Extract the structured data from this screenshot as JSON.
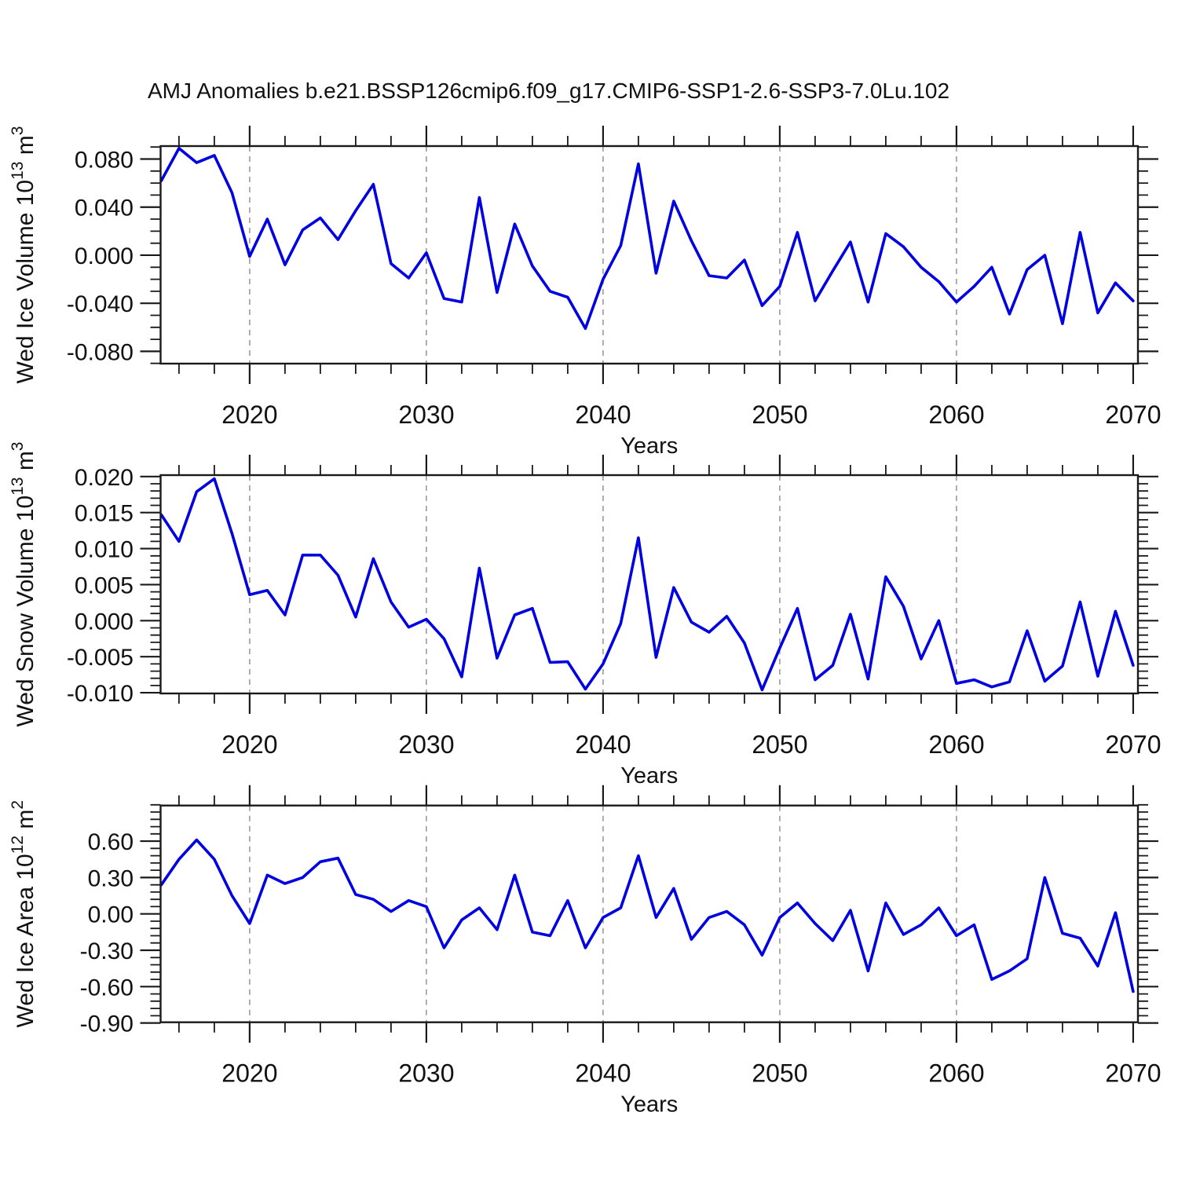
{
  "title": "AMJ Anomalies b.e21.BSSP126cmip6.f09_g17.CMIP6-SSP1-2.6-SSP3-7.0Lu.102",
  "colors": {
    "line": "#0000e0",
    "grid": "#9a9a9a",
    "frame": "#1a1a1a",
    "text": "#111111"
  },
  "x_axis": {
    "label": "Years",
    "major_ticks": [
      2020,
      2030,
      2040,
      2050,
      2060,
      2070
    ],
    "minor_ticks": [
      2016,
      2018,
      2022,
      2024,
      2026,
      2028,
      2032,
      2034,
      2036,
      2038,
      2042,
      2044,
      2046,
      2048,
      2052,
      2054,
      2056,
      2058,
      2062,
      2064,
      2066,
      2068
    ],
    "grid_years": [
      2020,
      2030,
      2040,
      2050,
      2060
    ],
    "range": [
      2014.96,
      2070.27
    ]
  },
  "years": [
    2015,
    2016,
    2017,
    2018,
    2019,
    2020,
    2021,
    2022,
    2023,
    2024,
    2025,
    2026,
    2027,
    2028,
    2029,
    2030,
    2031,
    2032,
    2033,
    2034,
    2035,
    2036,
    2037,
    2038,
    2039,
    2040,
    2041,
    2042,
    2043,
    2044,
    2045,
    2046,
    2047,
    2048,
    2049,
    2050,
    2051,
    2052,
    2053,
    2054,
    2055,
    2056,
    2057,
    2058,
    2059,
    2060,
    2061,
    2062,
    2063,
    2064,
    2065,
    2066,
    2067,
    2068,
    2069,
    2070
  ],
  "chart_data": [
    {
      "type": "line",
      "name": "wed-ice-volume",
      "ylabel": {
        "prefix": "Wed Ice Volume 10",
        "exp": "13",
        "mid": " m",
        "exp2": "3"
      },
      "ylabel_unicode": "Wed Ice Volume 10¹³ m³",
      "ylim": [
        -0.0902,
        0.0908
      ],
      "yticks": {
        "values": [
          0.08,
          0.04,
          0.0,
          -0.04,
          -0.08
        ],
        "labels": [
          "0.080",
          "0.040",
          "0.000",
          "-0.040",
          "-0.080"
        ],
        "minor_step": 0.01
      },
      "values": [
        0.062,
        0.089,
        0.077,
        0.083,
        0.052,
        -0.001,
        0.03,
        -0.008,
        0.021,
        0.031,
        0.013,
        0.037,
        0.059,
        -0.007,
        -0.019,
        0.002,
        -0.036,
        -0.039,
        0.048,
        -0.031,
        0.026,
        -0.009,
        -0.03,
        -0.035,
        -0.061,
        -0.02,
        0.008,
        0.076,
        -0.015,
        0.045,
        0.012,
        -0.017,
        -0.019,
        -0.004,
        -0.042,
        -0.026,
        0.019,
        -0.038,
        -0.013,
        0.011,
        -0.039,
        0.018,
        0.007,
        -0.01,
        -0.022,
        -0.039,
        -0.026,
        -0.01,
        -0.049,
        -0.012,
        0.0,
        -0.057,
        0.019,
        -0.048,
        -0.023,
        -0.038
      ]
    },
    {
      "type": "line",
      "name": "wed-snow-volume",
      "ylabel": {
        "prefix": "Wed Snow Volume 10",
        "exp": "13",
        "mid": " m",
        "exp2": "3"
      },
      "ylabel_unicode": "Wed Snow Volume 10¹³ m³",
      "ylim": [
        -0.0101,
        0.0202
      ],
      "yticks": {
        "values": [
          0.02,
          0.015,
          0.01,
          0.005,
          0.0,
          -0.005,
          -0.01
        ],
        "labels": [
          "0.020",
          "0.015",
          "0.010",
          "0.005",
          "0.000",
          "-0.005",
          "-0.010"
        ],
        "minor_step": 0.001
      },
      "values": [
        0.0147,
        0.011,
        0.0179,
        0.0197,
        0.0121,
        0.0036,
        0.0042,
        0.0008,
        0.0091,
        0.0091,
        0.0063,
        0.0005,
        0.0086,
        0.0026,
        -0.0009,
        0.0002,
        -0.0025,
        -0.0078,
        0.0073,
        -0.0052,
        0.0008,
        0.0017,
        -0.0058,
        -0.0057,
        -0.0095,
        -0.006,
        -0.0004,
        0.0115,
        -0.0051,
        0.0046,
        -0.0002,
        -0.0016,
        0.0006,
        -0.0031,
        -0.0096,
        -0.0038,
        0.0017,
        -0.0082,
        -0.0062,
        0.0009,
        -0.0081,
        0.0061,
        0.002,
        -0.0053,
        0.0,
        -0.0087,
        -0.0082,
        -0.0092,
        -0.0085,
        -0.0014,
        -0.0084,
        -0.0063,
        0.0026,
        -0.0077,
        0.0013,
        -0.0062
      ]
    },
    {
      "type": "line",
      "name": "wed-ice-area",
      "ylabel": {
        "prefix": "Wed Ice Area 10",
        "exp": "12",
        "mid": " m",
        "exp2": "2"
      },
      "ylabel_unicode": "Wed Ice Area 10¹² m²",
      "ylim": [
        -0.894,
        0.894
      ],
      "yticks": {
        "values": [
          0.6,
          0.3,
          0.0,
          -0.3,
          -0.6,
          -0.9
        ],
        "labels": [
          "0.60",
          "0.30",
          "0.00",
          "-0.30",
          "-0.60",
          "-0.90"
        ],
        "minor_step": 0.06
      },
      "values": [
        0.24,
        0.45,
        0.61,
        0.45,
        0.15,
        -0.08,
        0.32,
        0.25,
        0.3,
        0.43,
        0.46,
        0.16,
        0.12,
        0.02,
        0.11,
        0.06,
        -0.28,
        -0.05,
        0.05,
        -0.13,
        0.32,
        -0.15,
        -0.18,
        0.11,
        -0.28,
        -0.03,
        0.05,
        0.48,
        -0.03,
        0.21,
        -0.21,
        -0.03,
        0.02,
        -0.09,
        -0.34,
        -0.03,
        0.09,
        -0.08,
        -0.22,
        0.03,
        -0.47,
        0.09,
        -0.17,
        -0.09,
        0.05,
        -0.18,
        -0.09,
        -0.54,
        -0.47,
        -0.37,
        0.3,
        -0.16,
        -0.2,
        -0.43,
        0.01,
        -0.64
      ]
    }
  ]
}
